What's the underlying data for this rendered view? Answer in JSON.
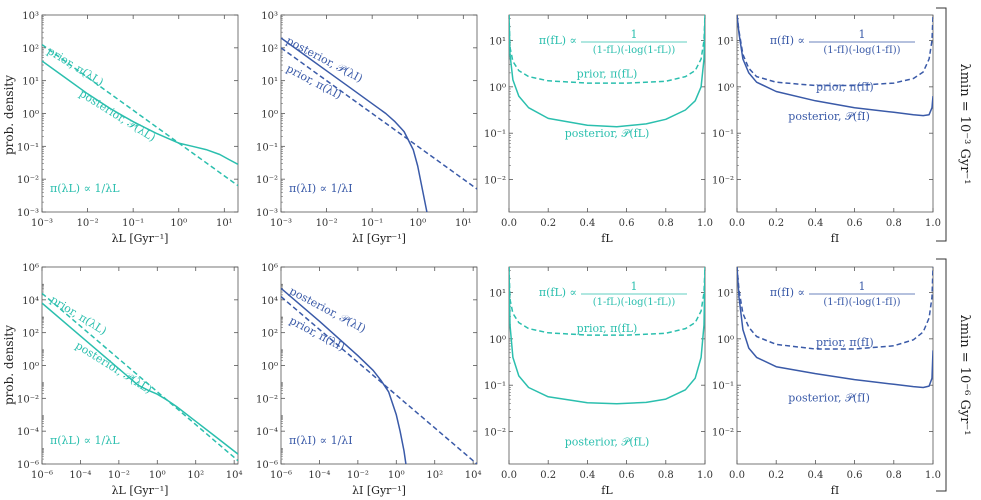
{
  "colors": {
    "teal": "#2bbfae",
    "blue": "#3a5aa8",
    "axis": "#555555"
  },
  "ylabel": "prob. density",
  "rows": [
    {
      "label": "λmin = 10⁻³ Gyr⁻¹"
    },
    {
      "label": "λmin = 10⁻⁶ Gyr⁻¹"
    }
  ],
  "chart_data": [
    {
      "id": "r1c1",
      "type": "line",
      "xscale": "log",
      "yscale": "log",
      "xlabel": "λL [Gyr⁻¹]",
      "xlim": [
        -3,
        1.3
      ],
      "ylim": [
        -3,
        3
      ],
      "xticks": [
        -3,
        -2,
        -1,
        0,
        1
      ],
      "yticks": [
        -3,
        -2,
        -1,
        0,
        1,
        2,
        3
      ],
      "color": "teal",
      "annotation": "π(λL) ∝ 1/λL",
      "series": [
        {
          "name": "prior, π(λL)",
          "dash": true,
          "x": [
            -3,
            1.3
          ],
          "y": [
            2.1,
            -2.2
          ]
        },
        {
          "name": "posterior, 𝒫(λL)",
          "dash": false,
          "x": [
            -3,
            -2.5,
            -2,
            -1.5,
            -1,
            -0.5,
            0,
            0.3,
            0.6,
            0.9,
            1.1,
            1.3
          ],
          "y": [
            1.6,
            1.1,
            0.6,
            0.15,
            -0.25,
            -0.6,
            -0.9,
            -1.0,
            -1.1,
            -1.25,
            -1.4,
            -1.55
          ]
        }
      ],
      "labels": [
        {
          "text": "prior, π(λL)",
          "x": -2.9,
          "y": 1.85,
          "rot": 32
        },
        {
          "text": "posterior, 𝒫(λL)",
          "x": -2.2,
          "y": 0.55,
          "rot": 32
        }
      ]
    },
    {
      "id": "r1c2",
      "type": "line",
      "xscale": "log",
      "yscale": "log",
      "xlabel": "λI [Gyr⁻¹]",
      "xlim": [
        -3,
        1.3
      ],
      "ylim": [
        -3,
        3
      ],
      "xticks": [
        -3,
        -2,
        -1,
        0,
        1
      ],
      "yticks": [
        -3,
        -2,
        -1,
        0,
        1,
        2,
        3
      ],
      "color": "blue",
      "annotation": "π(λI) ∝ 1/λI",
      "series": [
        {
          "name": "prior, π(λI)",
          "dash": true,
          "x": [
            -3,
            1.3
          ],
          "y": [
            2.0,
            -2.3
          ]
        },
        {
          "name": "posterior, 𝒫(λI)",
          "dash": false,
          "x": [
            -3,
            -2.5,
            -2,
            -1.5,
            -1,
            -0.7,
            -0.5,
            -0.3,
            -0.1,
            0.0,
            0.1,
            0.2
          ],
          "y": [
            2.3,
            1.8,
            1.3,
            0.8,
            0.3,
            0.0,
            -0.25,
            -0.55,
            -1.1,
            -1.6,
            -2.3,
            -3.0
          ]
        }
      ],
      "labels": [
        {
          "text": "posterior, 𝒫(λI)",
          "x": -2.9,
          "y": 2.15,
          "rot": 28
        },
        {
          "text": "prior, π(λI)",
          "x": -2.9,
          "y": 1.3,
          "rot": 28
        }
      ]
    },
    {
      "id": "r1c3",
      "type": "line",
      "xscale": "linear",
      "yscale": "log",
      "xlabel": "fL",
      "xlim": [
        0,
        1
      ],
      "ylim": [
        -2.7,
        1.55
      ],
      "xticks": [
        0,
        0.2,
        0.4,
        0.6,
        0.8,
        1.0
      ],
      "yticks": [
        -2,
        -1,
        0,
        1
      ],
      "color": "teal",
      "formula": {
        "lhs": "π(fL) ∝",
        "num": "1",
        "den": "(1-fL)(-log(1-fL))"
      },
      "series": [
        {
          "name": "prior, π(fL)",
          "dash": true,
          "x": [
            0,
            0.005,
            0.02,
            0.05,
            0.1,
            0.2,
            0.4,
            0.6,
            0.8,
            0.9,
            0.95,
            0.98,
            0.995,
            1.0
          ],
          "y": [
            1.55,
            0.85,
            0.55,
            0.35,
            0.22,
            0.13,
            0.08,
            0.08,
            0.12,
            0.22,
            0.35,
            0.6,
            1.0,
            1.55
          ]
        },
        {
          "name": "posterior, 𝒫(fL)",
          "dash": false,
          "x": [
            0,
            0.005,
            0.02,
            0.05,
            0.1,
            0.2,
            0.4,
            0.55,
            0.7,
            0.8,
            0.9,
            0.95,
            0.98,
            0.995,
            1.0
          ],
          "y": [
            1.55,
            0.7,
            0.15,
            -0.2,
            -0.45,
            -0.68,
            -0.83,
            -0.86,
            -0.8,
            -0.7,
            -0.5,
            -0.3,
            0.0,
            0.6,
            1.55
          ]
        }
      ],
      "labels": [
        {
          "text": "prior, π(fL)",
          "x": 0.5,
          "y": 0.2,
          "rot": 0
        },
        {
          "text": "posterior, 𝒫(fL)",
          "x": 0.5,
          "y": -1.08,
          "rot": 0
        }
      ]
    },
    {
      "id": "r1c4",
      "type": "line",
      "xscale": "linear",
      "yscale": "log",
      "xlabel": "fI",
      "xlim": [
        0,
        1
      ],
      "ylim": [
        -2.7,
        1.55
      ],
      "xticks": [
        0,
        0.2,
        0.4,
        0.6,
        0.8,
        1.0
      ],
      "yticks": [
        -2,
        -1,
        0,
        1
      ],
      "color": "blue",
      "formula": {
        "lhs": "π(fI) ∝",
        "num": "1",
        "den": "(1-fI)(-log(1-fI))"
      },
      "series": [
        {
          "name": "prior, π(fI)",
          "dash": true,
          "x": [
            0,
            0.01,
            0.03,
            0.06,
            0.1,
            0.2,
            0.4,
            0.6,
            0.8,
            0.9,
            0.95,
            0.98,
            0.995,
            1.0
          ],
          "y": [
            1.55,
            1.2,
            0.7,
            0.4,
            0.22,
            0.1,
            0.03,
            0.03,
            0.08,
            0.18,
            0.32,
            0.6,
            1.0,
            1.55
          ]
        },
        {
          "name": "posterior, 𝒫(fI)",
          "dash": false,
          "x": [
            0,
            0.01,
            0.03,
            0.06,
            0.1,
            0.2,
            0.4,
            0.6,
            0.8,
            0.9,
            0.95,
            0.98,
            0.995,
            1.0
          ],
          "y": [
            1.55,
            1.15,
            0.6,
            0.3,
            0.1,
            -0.1,
            -0.3,
            -0.45,
            -0.55,
            -0.6,
            -0.62,
            -0.6,
            -0.45,
            -0.2
          ]
        }
      ],
      "labels": [
        {
          "text": "prior, π(fI)",
          "x": 0.55,
          "y": -0.08,
          "rot": 0
        },
        {
          "text": "posterior, 𝒫(fI)",
          "x": 0.47,
          "y": -0.72,
          "rot": 0
        }
      ]
    },
    {
      "id": "r2c1",
      "type": "line",
      "xscale": "log",
      "yscale": "log",
      "xlabel": "λL [Gyr⁻¹]",
      "xlim": [
        -6,
        4.2
      ],
      "ylim": [
        -6,
        6
      ],
      "xticks": [
        -6,
        -4,
        -2,
        0,
        2,
        4
      ],
      "yticks": [
        -6,
        -4,
        -2,
        0,
        2,
        4,
        6
      ],
      "color": "teal",
      "annotation": "π(λL) ∝ 1/λL",
      "series": [
        {
          "name": "prior, π(λL)",
          "dash": true,
          "x": [
            -6,
            4.2
          ],
          "y": [
            4.4,
            -5.8
          ]
        },
        {
          "name": "posterior, 𝒫(λL)",
          "dash": false,
          "x": [
            -6,
            -4,
            -2,
            -1,
            -0.5,
            0,
            0.5,
            1,
            2,
            3,
            4.2
          ],
          "y": [
            3.8,
            1.8,
            -0.2,
            -1.2,
            -1.5,
            -1.75,
            -2.1,
            -2.5,
            -3.4,
            -4.3,
            -5.4
          ]
        }
      ],
      "labels": [
        {
          "text": "prior, π(λL)",
          "x": -5.6,
          "y": 3.9,
          "rot": 32
        },
        {
          "text": "posterior, 𝒫(λL)",
          "x": -4.3,
          "y": 1.1,
          "rot": 32
        }
      ]
    },
    {
      "id": "r2c2",
      "type": "line",
      "xscale": "log",
      "yscale": "log",
      "xlabel": "λI [Gyr⁻¹]",
      "xlim": [
        -6,
        4.2
      ],
      "ylim": [
        -6,
        6
      ],
      "xticks": [
        -6,
        -4,
        -2,
        0,
        2,
        4
      ],
      "yticks": [
        -6,
        -4,
        -2,
        0,
        2,
        4,
        6
      ],
      "color": "blue",
      "annotation": "π(λI) ∝ 1/λI",
      "series": [
        {
          "name": "prior, π(λI)",
          "dash": true,
          "x": [
            -6,
            4.2
          ],
          "y": [
            4.2,
            -6.0
          ]
        },
        {
          "name": "posterior, 𝒫(λI)",
          "dash": false,
          "x": [
            -6,
            -4,
            -2,
            -1.2,
            -0.8,
            -0.4,
            0,
            0.2,
            0.4,
            0.5
          ],
          "y": [
            4.7,
            2.7,
            0.6,
            -0.3,
            -0.9,
            -1.6,
            -3.0,
            -4.0,
            -5.2,
            -6.0
          ]
        }
      ],
      "labels": [
        {
          "text": "posterior, 𝒫(λI)",
          "x": -5.6,
          "y": 4.4,
          "rot": 28
        },
        {
          "text": "prior, π(λI)",
          "x": -5.6,
          "y": 2.6,
          "rot": 28
        }
      ]
    },
    {
      "id": "r2c3",
      "type": "line",
      "xscale": "linear",
      "yscale": "log",
      "xlabel": "fL",
      "xlim": [
        0,
        1
      ],
      "ylim": [
        -2.7,
        1.55
      ],
      "xticks": [
        0,
        0.2,
        0.4,
        0.6,
        0.8,
        1.0
      ],
      "yticks": [
        -2,
        -1,
        0,
        1
      ],
      "color": "teal",
      "formula": {
        "lhs": "π(fL) ∝",
        "num": "1",
        "den": "(1-fL)(-log(1-fL))"
      },
      "series": [
        {
          "name": "prior, π(fL)",
          "dash": true,
          "x": [
            0,
            0.005,
            0.02,
            0.05,
            0.1,
            0.2,
            0.4,
            0.6,
            0.8,
            0.9,
            0.95,
            0.98,
            0.995,
            1.0
          ],
          "y": [
            1.55,
            0.85,
            0.55,
            0.35,
            0.22,
            0.13,
            0.08,
            0.08,
            0.12,
            0.22,
            0.35,
            0.6,
            1.0,
            1.55
          ]
        },
        {
          "name": "posterior, 𝒫(fL)",
          "dash": false,
          "x": [
            0,
            0.005,
            0.02,
            0.05,
            0.1,
            0.2,
            0.4,
            0.55,
            0.7,
            0.8,
            0.9,
            0.95,
            0.98,
            0.995,
            1.0
          ],
          "y": [
            1.55,
            0.3,
            -0.4,
            -0.8,
            -1.05,
            -1.25,
            -1.38,
            -1.4,
            -1.37,
            -1.3,
            -1.1,
            -0.85,
            -0.4,
            0.3,
            1.55
          ]
        }
      ],
      "labels": [
        {
          "text": "prior, π(fL)",
          "x": 0.5,
          "y": 0.15,
          "rot": 0
        },
        {
          "text": "posterior, 𝒫(fL)",
          "x": 0.5,
          "y": -2.3,
          "rot": 0
        }
      ]
    },
    {
      "id": "r2c4",
      "type": "line",
      "xscale": "linear",
      "yscale": "log",
      "xlabel": "fI",
      "xlim": [
        0,
        1
      ],
      "ylim": [
        -2.7,
        1.55
      ],
      "xticks": [
        0,
        0.2,
        0.4,
        0.6,
        0.8,
        1.0
      ],
      "yticks": [
        -2,
        -1,
        0,
        1
      ],
      "color": "blue",
      "formula": {
        "lhs": "π(fI) ∝",
        "num": "1",
        "den": "(1-fI)(-log(1-fI))"
      },
      "series": [
        {
          "name": "prior, π(fI)",
          "dash": true,
          "x": [
            0,
            0.01,
            0.03,
            0.06,
            0.1,
            0.2,
            0.4,
            0.6,
            0.8,
            0.9,
            0.95,
            0.98,
            0.995,
            1.0
          ],
          "y": [
            1.55,
            1.05,
            0.55,
            0.25,
            0.05,
            -0.12,
            -0.22,
            -0.22,
            -0.15,
            -0.02,
            0.15,
            0.45,
            0.9,
            1.55
          ]
        },
        {
          "name": "posterior, 𝒫(fI)",
          "dash": false,
          "x": [
            0,
            0.01,
            0.03,
            0.06,
            0.1,
            0.2,
            0.4,
            0.6,
            0.8,
            0.9,
            0.95,
            0.98,
            0.995,
            1.0
          ],
          "y": [
            1.55,
            0.9,
            0.2,
            -0.2,
            -0.4,
            -0.6,
            -0.75,
            -0.88,
            -0.98,
            -1.03,
            -1.05,
            -1.02,
            -0.85,
            -0.25
          ]
        }
      ],
      "labels": [
        {
          "text": "prior, π(fI)",
          "x": 0.55,
          "y": -0.15,
          "rot": 0
        },
        {
          "text": "posterior, 𝒫(fI)",
          "x": 0.47,
          "y": -1.35,
          "rot": 0
        }
      ]
    }
  ]
}
